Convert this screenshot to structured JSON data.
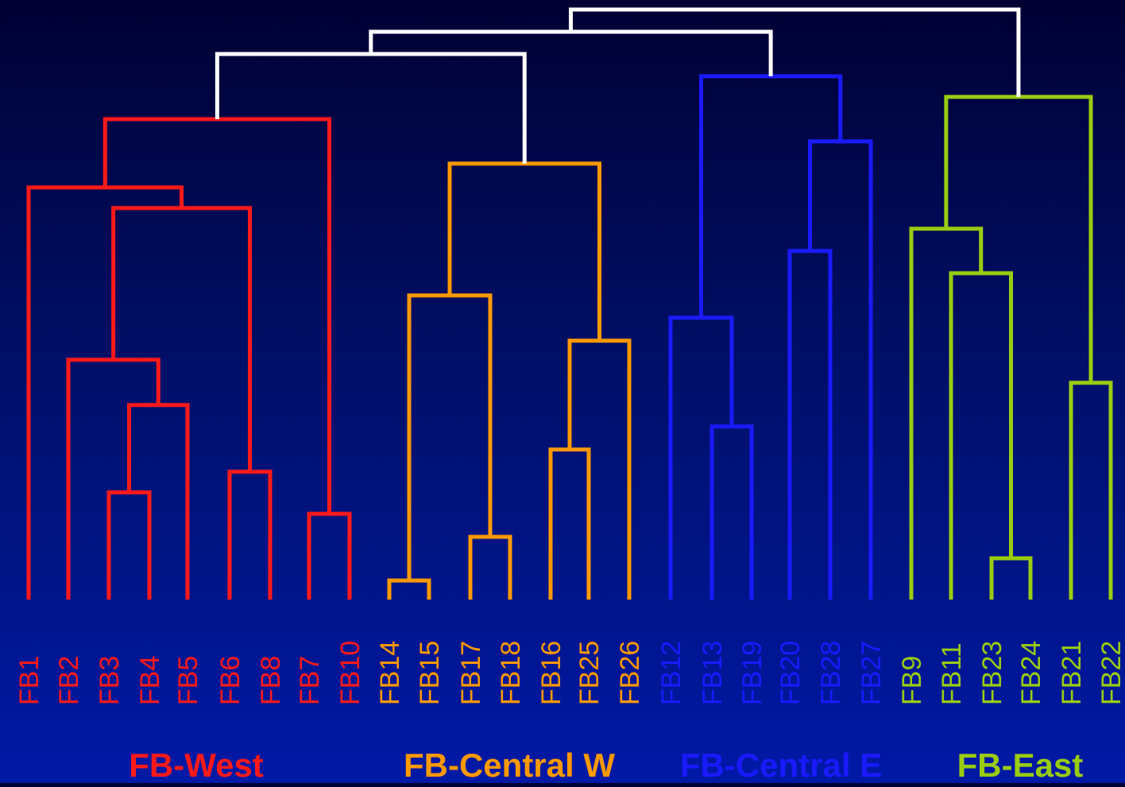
{
  "colors": {
    "west": "#ff1a1a",
    "central_w": "#ff9900",
    "central_e": "#1a1aff",
    "east": "#99cc11",
    "root": "#ffffff"
  },
  "leaves": [
    {
      "label": "FB1",
      "group": "west"
    },
    {
      "label": "FB2",
      "group": "west"
    },
    {
      "label": "FB3",
      "group": "west"
    },
    {
      "label": "FB4",
      "group": "west"
    },
    {
      "label": "FB5",
      "group": "west"
    },
    {
      "label": "FB6",
      "group": "west"
    },
    {
      "label": "FB8",
      "group": "west"
    },
    {
      "label": "FB7",
      "group": "west"
    },
    {
      "label": "FB10",
      "group": "west"
    },
    {
      "label": "FB14",
      "group": "central_w"
    },
    {
      "label": "FB15",
      "group": "central_w"
    },
    {
      "label": "FB17",
      "group": "central_w"
    },
    {
      "label": "FB18",
      "group": "central_w"
    },
    {
      "label": "FB16",
      "group": "central_w"
    },
    {
      "label": "FB25",
      "group": "central_w"
    },
    {
      "label": "FB26",
      "group": "central_w"
    },
    {
      "label": "FB12",
      "group": "central_e"
    },
    {
      "label": "FB13",
      "group": "central_e"
    },
    {
      "label": "FB19",
      "group": "central_e"
    },
    {
      "label": "FB20",
      "group": "central_e"
    },
    {
      "label": "FB28",
      "group": "central_e"
    },
    {
      "label": "FB27",
      "group": "central_e"
    },
    {
      "label": "FB9",
      "group": "east"
    },
    {
      "label": "FB11",
      "group": "east"
    },
    {
      "label": "FB23",
      "group": "east"
    },
    {
      "label": "FB24",
      "group": "east"
    },
    {
      "label": "FB21",
      "group": "east"
    },
    {
      "label": "FB22",
      "group": "east"
    }
  ],
  "groups": [
    {
      "key": "west",
      "label": "FB-West"
    },
    {
      "key": "central_w",
      "label": "FB-Central W"
    },
    {
      "key": "central_e",
      "label": "FB-Central E"
    },
    {
      "key": "east",
      "label": "FB-East"
    }
  ]
}
